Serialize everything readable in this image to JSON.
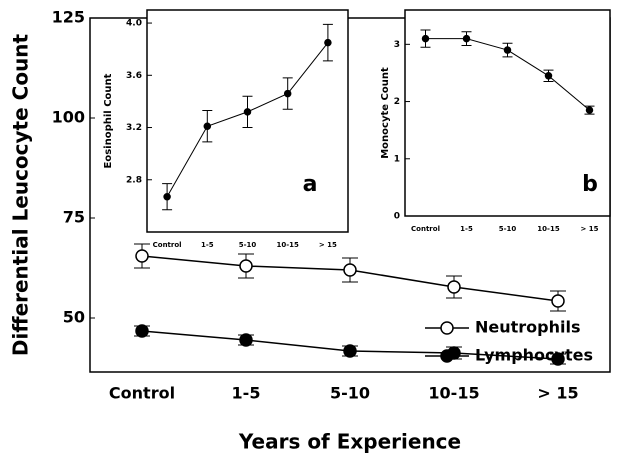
{
  "chart_data": [
    {
      "type": "line",
      "x_label": "Years of Experience",
      "y_label": "Differential Leucocyte Count",
      "categories": [
        "Control",
        "1-5",
        "5-10",
        "10-15",
        "> 15"
      ],
      "ylim": [
        36.5,
        125
      ],
      "yticks": [
        50,
        75,
        100,
        125
      ],
      "legend": "lower right",
      "series": [
        {
          "name": "Neutrophils",
          "color": "#000000",
          "marker": "open",
          "values": [
            65.5,
            63,
            62,
            57.75,
            54.25
          ],
          "errors": [
            3,
            3,
            3,
            2.75,
            2.5
          ]
        },
        {
          "name": "Lymphocytes",
          "color": "#000000",
          "marker": "filled",
          "values": [
            46.75,
            44.5,
            41.75,
            41.25,
            39.75
          ],
          "errors": [
            1.25,
            1.25,
            1.25,
            1.5,
            1.25
          ]
        }
      ]
    },
    {
      "type": "line",
      "y_label": "Eosinophil Count",
      "panel_label": "a",
      "categories": [
        "Control",
        "1-5",
        "5-10",
        "10-15",
        "> 15"
      ],
      "ylim": [
        2.4,
        4.1
      ],
      "yticks": [
        2.8,
        3.2,
        3.6,
        {
          "value": 4.0,
          "label": "4.0"
        }
      ],
      "series": [
        {
          "color": "#000000",
          "marker": "filled",
          "values": [
            2.67,
            3.21,
            3.32,
            3.46,
            3.85
          ],
          "errors": [
            0.1,
            0.12,
            0.12,
            0.12,
            0.14
          ]
        }
      ]
    },
    {
      "type": "line",
      "y_label": "Monocyte Count",
      "panel_label": "b",
      "categories": [
        "Control",
        "1-5",
        "5-10",
        "10-15",
        "> 15"
      ],
      "ylim": [
        0,
        3.6
      ],
      "yticks": [
        0,
        1,
        2,
        3
      ],
      "series": [
        {
          "color": "#000000",
          "marker": "filled",
          "values": [
            3.1,
            3.1,
            2.9,
            2.45,
            1.85
          ],
          "errors": [
            0.15,
            0.12,
            0.12,
            0.1,
            0.07
          ]
        }
      ]
    }
  ]
}
